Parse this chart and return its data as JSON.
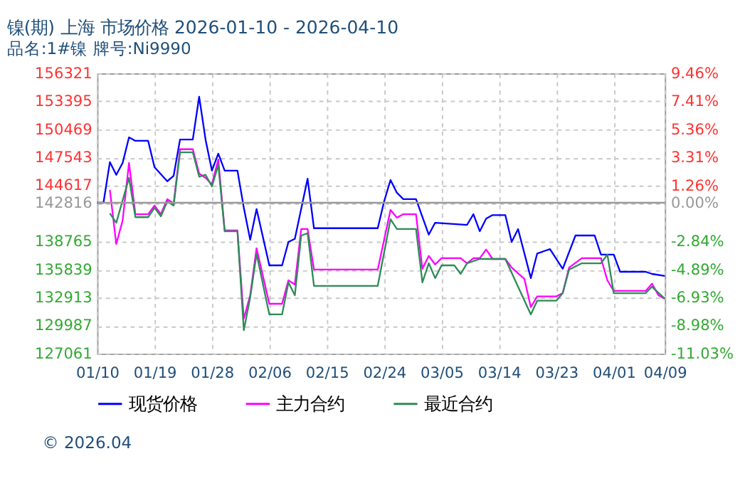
{
  "chart_data": {
    "type": "line",
    "title": "镍(期) 上海 市场价格 2026-01-10 - 2026-04-10",
    "subtitle": "品名:1#镍 牌号:Ni9990",
    "annotations": [
      "© 2026.04"
    ],
    "xlim": [
      "2026-01-10",
      "2026-04-09"
    ],
    "xticks": [
      {
        "value": "2026-01-10",
        "label": "01/10"
      },
      {
        "value": "2026-01-19",
        "label": "01/19"
      },
      {
        "value": "2026-01-28",
        "label": "01/28"
      },
      {
        "value": "2026-02-06",
        "label": "02/06"
      },
      {
        "value": "2026-02-15",
        "label": "02/15"
      },
      {
        "value": "2026-02-24",
        "label": "02/24"
      },
      {
        "value": "2026-03-05",
        "label": "03/05"
      },
      {
        "value": "2026-03-14",
        "label": "03/14"
      },
      {
        "value": "2026-03-23",
        "label": "03/23"
      },
      {
        "value": "2026-04-01",
        "label": "04/01"
      },
      {
        "value": "2026-04-09",
        "label": "04/09"
      }
    ],
    "ylim": [
      127061,
      156321
    ],
    "yticks": [
      127061,
      129987,
      132913,
      135839,
      138765,
      142816,
      144617,
      147543,
      150469,
      153395,
      156321
    ],
    "y2lim": [
      -11.03,
      9.46
    ],
    "y2ticks": [
      {
        "value": -11.03,
        "label": "-11.03%"
      },
      {
        "value": -8.98,
        "label": "-8.98%"
      },
      {
        "value": -6.93,
        "label": "-6.93%"
      },
      {
        "value": -4.89,
        "label": "-4.89%"
      },
      {
        "value": -2.84,
        "label": "-2.84%"
      },
      {
        "value": 0,
        "label": "0.00%"
      },
      {
        "value": 1.26,
        "label": "1.26%"
      },
      {
        "value": 3.31,
        "label": "3.31%"
      },
      {
        "value": 5.36,
        "label": "5.36%"
      },
      {
        "value": 7.41,
        "label": "7.41%"
      },
      {
        "value": 9.46,
        "label": "9.46%"
      }
    ],
    "ref_lines": [
      {
        "axis": "y2",
        "value": 0,
        "color": "#999999"
      }
    ],
    "grid": true,
    "legend": "bottom",
    "marker": "none",
    "line_style": "solid",
    "series": [
      {
        "name": "现货价格",
        "color": "#0000ff",
        "x": [
          "2026-01-10",
          "2026-01-11",
          "2026-01-12",
          "2026-01-13",
          "2026-01-14",
          "2026-01-15",
          "2026-01-16",
          "2026-01-18",
          "2026-01-19",
          "2026-01-21",
          "2026-01-22",
          "2026-01-23",
          "2026-01-25",
          "2026-01-26",
          "2026-01-27",
          "2026-01-28",
          "2026-01-29",
          "2026-01-30",
          "2026-02-01",
          "2026-02-02",
          "2026-02-03",
          "2026-02-04",
          "2026-02-06",
          "2026-02-08",
          "2026-02-09",
          "2026-02-10",
          "2026-02-12",
          "2026-02-13",
          "2026-02-23",
          "2026-02-24",
          "2026-02-25",
          "2026-02-26",
          "2026-02-27",
          "2026-03-01",
          "2026-03-03",
          "2026-03-04",
          "2026-03-09",
          "2026-03-10",
          "2026-03-11",
          "2026-03-12",
          "2026-03-13",
          "2026-03-15",
          "2026-03-16",
          "2026-03-17",
          "2026-03-19",
          "2026-03-20",
          "2026-03-22",
          "2026-03-24",
          "2026-03-26",
          "2026-03-29",
          "2026-03-30",
          "2026-04-01",
          "2026-04-02",
          "2026-04-06",
          "2026-04-07",
          "2026-04-09"
        ],
        "values": [
          142816,
          142816,
          147060,
          145730,
          146970,
          149640,
          149280,
          149280,
          146530,
          145060,
          145630,
          149410,
          149410,
          153880,
          149410,
          146170,
          147940,
          146170,
          146170,
          142290,
          138950,
          142160,
          136280,
          136280,
          138730,
          139050,
          145330,
          140160,
          140160,
          142960,
          145190,
          143860,
          143190,
          143190,
          139490,
          140730,
          140510,
          141620,
          139840,
          141170,
          141530,
          141530,
          138730,
          140070,
          134950,
          137520,
          137980,
          135920,
          139400,
          139400,
          137400,
          137400,
          135610,
          135610,
          135390,
          135170
        ]
      },
      {
        "name": "主力合约",
        "color": "#ff00ff",
        "x": [
          "2026-01-12",
          "2026-01-13",
          "2026-01-14",
          "2026-01-15",
          "2026-01-16",
          "2026-01-18",
          "2026-01-19",
          "2026-01-20",
          "2026-01-21",
          "2026-01-22",
          "2026-01-23",
          "2026-01-25",
          "2026-01-26",
          "2026-01-27",
          "2026-01-28",
          "2026-01-29",
          "2026-01-30",
          "2026-02-01",
          "2026-02-02",
          "2026-02-03",
          "2026-02-04",
          "2026-02-06",
          "2026-02-08",
          "2026-02-09",
          "2026-02-10",
          "2026-02-11",
          "2026-02-12",
          "2026-02-13",
          "2026-02-23",
          "2026-02-25",
          "2026-02-26",
          "2026-02-27",
          "2026-03-01",
          "2026-03-02",
          "2026-03-03",
          "2026-03-04",
          "2026-03-05",
          "2026-03-08",
          "2026-03-09",
          "2026-03-10",
          "2026-03-11",
          "2026-03-12",
          "2026-03-13",
          "2026-03-15",
          "2026-03-16",
          "2026-03-18",
          "2026-03-19",
          "2026-03-20",
          "2026-03-23",
          "2026-03-24",
          "2026-03-25",
          "2026-03-27",
          "2026-03-30",
          "2026-03-31",
          "2026-04-01",
          "2026-04-06",
          "2026-04-07",
          "2026-04-08",
          "2026-04-09"
        ],
        "values": [
          144160,
          138510,
          140960,
          146970,
          141620,
          141620,
          142520,
          141620,
          143190,
          142740,
          148400,
          148400,
          145860,
          145410,
          144740,
          147330,
          139930,
          139930,
          130710,
          133160,
          138060,
          132270,
          132270,
          134720,
          134280,
          140070,
          140070,
          135840,
          135840,
          142070,
          141260,
          141620,
          141620,
          135920,
          137260,
          136370,
          137030,
          137030,
          136500,
          137030,
          137030,
          137930,
          136950,
          136950,
          136050,
          134860,
          131920,
          133040,
          133040,
          133380,
          136050,
          137030,
          137030,
          134720,
          133610,
          133610,
          134370,
          133160,
          132800
        ]
      },
      {
        "name": "最近合约",
        "color": "#2e8b57",
        "x": [
          "2026-01-12",
          "2026-01-13",
          "2026-01-14",
          "2026-01-15",
          "2026-01-16",
          "2026-01-18",
          "2026-01-19",
          "2026-01-20",
          "2026-01-21",
          "2026-01-22",
          "2026-01-23",
          "2026-01-25",
          "2026-01-26",
          "2026-01-27",
          "2026-01-28",
          "2026-01-29",
          "2026-01-30",
          "2026-02-01",
          "2026-02-02",
          "2026-02-03",
          "2026-02-04",
          "2026-02-06",
          "2026-02-08",
          "2026-02-09",
          "2026-02-10",
          "2026-02-11",
          "2026-02-12",
          "2026-02-13",
          "2026-02-23",
          "2026-02-25",
          "2026-02-26",
          "2026-03-01",
          "2026-03-02",
          "2026-03-03",
          "2026-03-04",
          "2026-03-05",
          "2026-03-07",
          "2026-03-08",
          "2026-03-09",
          "2026-03-11",
          "2026-03-15",
          "2026-03-19",
          "2026-03-20",
          "2026-03-23",
          "2026-03-24",
          "2026-03-25",
          "2026-03-27",
          "2026-03-30",
          "2026-03-31",
          "2026-04-01",
          "2026-04-06",
          "2026-04-07",
          "2026-04-09"
        ],
        "values": [
          141710,
          140730,
          143060,
          145410,
          141310,
          141310,
          142290,
          141400,
          142960,
          142520,
          148080,
          148080,
          145540,
          145730,
          144520,
          146750,
          139840,
          139840,
          129510,
          132940,
          137480,
          131160,
          131160,
          134500,
          133160,
          139400,
          139630,
          134140,
          134140,
          141090,
          140070,
          140070,
          134500,
          136500,
          134950,
          136280,
          136280,
          135390,
          136500,
          136950,
          136950,
          131160,
          132590,
          132590,
          133380,
          135840,
          136500,
          136500,
          137400,
          133380,
          133380,
          134050,
          132810
        ]
      }
    ]
  }
}
